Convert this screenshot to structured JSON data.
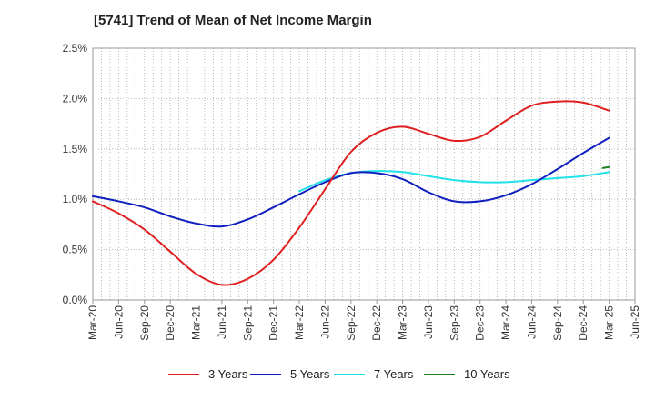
{
  "chart_data": {
    "type": "line",
    "title": "[5741]  Trend of Mean of Net Income Margin",
    "xlabel": "",
    "ylabel": "",
    "x": [
      "Mar-20",
      "Jun-20",
      "Sep-20",
      "Dec-20",
      "Mar-21",
      "Jun-21",
      "Sep-21",
      "Dec-21",
      "Mar-22",
      "Jun-22",
      "Sep-22",
      "Dec-22",
      "Mar-23",
      "Jun-23",
      "Sep-23",
      "Dec-23",
      "Mar-24",
      "Jun-24",
      "Sep-24",
      "Dec-24",
      "Mar-25",
      "Jun-25"
    ],
    "y_ticks": [
      "0.0%",
      "0.5%",
      "1.0%",
      "1.5%",
      "2.0%",
      "2.5%"
    ],
    "ylim": [
      0,
      2.5
    ],
    "grid": true,
    "legend_position": "bottom",
    "series": [
      {
        "name": "3 Years",
        "color": "#e02020",
        "values": [
          0.98,
          0.86,
          0.7,
          0.48,
          0.26,
          0.15,
          0.21,
          0.4,
          0.72,
          1.1,
          1.47,
          1.66,
          1.72,
          1.65,
          1.58,
          1.62,
          1.78,
          1.93,
          1.97,
          1.96,
          1.88,
          null
        ]
      },
      {
        "name": "5 Years",
        "color": "#1020c0",
        "values": [
          1.03,
          0.98,
          0.92,
          0.83,
          0.76,
          0.73,
          0.8,
          0.92,
          1.05,
          1.17,
          1.26,
          1.26,
          1.2,
          1.07,
          0.98,
          0.98,
          1.04,
          1.15,
          1.3,
          1.46,
          1.61,
          null
        ]
      },
      {
        "name": "7 Years",
        "color": "#20e0e8",
        "values": [
          null,
          null,
          null,
          null,
          null,
          null,
          null,
          null,
          1.08,
          1.19,
          1.26,
          1.28,
          1.27,
          1.23,
          1.19,
          1.17,
          1.17,
          1.19,
          1.21,
          1.23,
          1.27,
          null
        ]
      },
      {
        "name": "10 Years",
        "color": "#208020",
        "values": [
          null,
          null,
          null,
          null,
          null,
          null,
          null,
          null,
          null,
          null,
          null,
          null,
          null,
          null,
          null,
          null,
          null,
          null,
          null,
          null,
          1.32,
          null
        ],
        "start_point": {
          "x": "Dec-24",
          "y": 1.31
        }
      }
    ]
  }
}
